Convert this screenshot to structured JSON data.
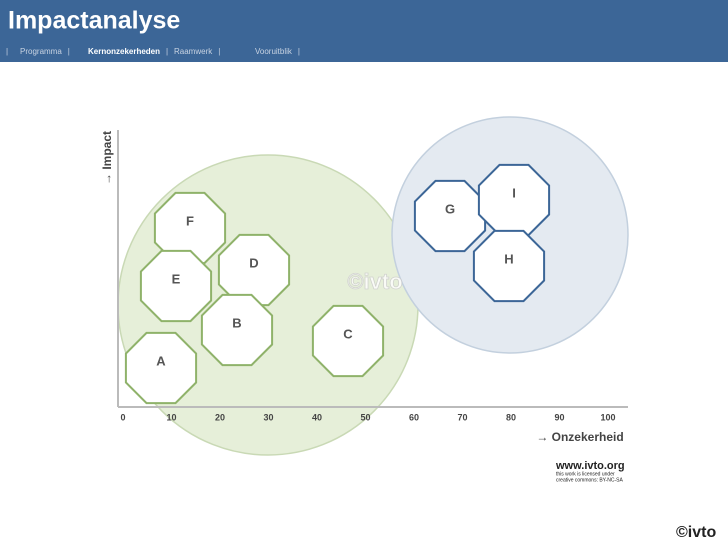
{
  "header": {
    "title": "Impactanalyse",
    "nav": [
      "Programma",
      "Kernonzekerheden",
      "Raamwerk",
      "Vooruitblik"
    ],
    "active": "Kernonzekerheden"
  },
  "diagram": {
    "y_axis_label": "→ Impact",
    "x_axis_label": "→ Onzekerheid",
    "x_ticks": [
      0,
      10,
      20,
      30,
      40,
      50,
      60,
      70,
      80,
      90,
      100
    ],
    "nodes": [
      {
        "label": "F"
      },
      {
        "label": "D"
      },
      {
        "label": "E"
      },
      {
        "label": "B"
      },
      {
        "label": "C"
      },
      {
        "label": "A"
      },
      {
        "label": "G"
      },
      {
        "label": "I"
      },
      {
        "label": "H"
      }
    ],
    "watermark": "©ivto"
  },
  "footer": {
    "url": "www.ivto.org",
    "license_1": "this work is licensed under",
    "license_2": "creative commons: BY-NC-SA",
    "logo": "©ivto"
  }
}
